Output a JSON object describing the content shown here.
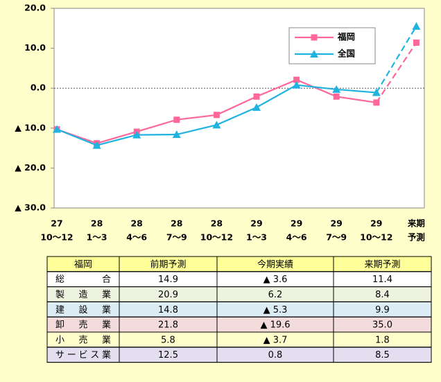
{
  "chart_data": {
    "type": "line",
    "categories": [
      [
        "27",
        "10〜12"
      ],
      [
        "28",
        "1〜3"
      ],
      [
        "28",
        "4〜6"
      ],
      [
        "28",
        "7〜9"
      ],
      [
        "28",
        "10〜12"
      ],
      [
        "29",
        "1〜3"
      ],
      [
        "29",
        "4〜6"
      ],
      [
        "29",
        "7〜9"
      ],
      [
        "29",
        "10〜12"
      ],
      [
        "来期",
        "予測"
      ]
    ],
    "series": [
      {
        "name": "福岡",
        "color": "#ff6699",
        "marker": "square",
        "values": [
          -10.3,
          -13.8,
          -10.9,
          -7.9,
          -6.7,
          -2.1,
          2.1,
          -2.1,
          -3.6,
          11.4
        ]
      },
      {
        "name": "全国",
        "color": "#1fb3e0",
        "marker": "triangle",
        "values": [
          -10.3,
          -14.3,
          -11.7,
          -11.6,
          -9.2,
          -4.8,
          0.8,
          -0.3,
          -1.1,
          15.5
        ]
      }
    ],
    "ylim": [
      -30,
      20
    ],
    "yticks": [
      {
        "value": -30,
        "label": "▲ 30.0"
      },
      {
        "value": -20,
        "label": "▲ 20.0"
      },
      {
        "value": -10,
        "label": "▲ 10.0"
      },
      {
        "value": 0,
        "label": "0.0"
      },
      {
        "value": 10,
        "label": "10.0"
      },
      {
        "value": 20,
        "label": "20.0"
      }
    ],
    "legend": "upper right"
  },
  "table": {
    "header": [
      "福岡",
      "前期予測",
      "今期実績",
      "来期予測"
    ],
    "header_color": "#ffff99",
    "rows": [
      [
        "総合",
        "14.9",
        "▲ 3.6",
        "11.4"
      ],
      [
        "製造業",
        "20.9",
        "6.2",
        "8.4"
      ],
      [
        "建設業",
        "14.8",
        "▲ 5.3",
        "9.9"
      ],
      [
        "卸売業",
        "21.8",
        "▲ 19.6",
        "35.0"
      ],
      [
        "小売業",
        "5.8",
        "▲ 3.7",
        "1.8"
      ],
      [
        "サービス業",
        "12.5",
        "0.8",
        "8.5"
      ]
    ],
    "row_colors": [
      "#ffffff",
      "#eef3e0",
      "#dcecf5",
      "#f5dcdc",
      "#ffffcc",
      "#e4dff0"
    ]
  }
}
